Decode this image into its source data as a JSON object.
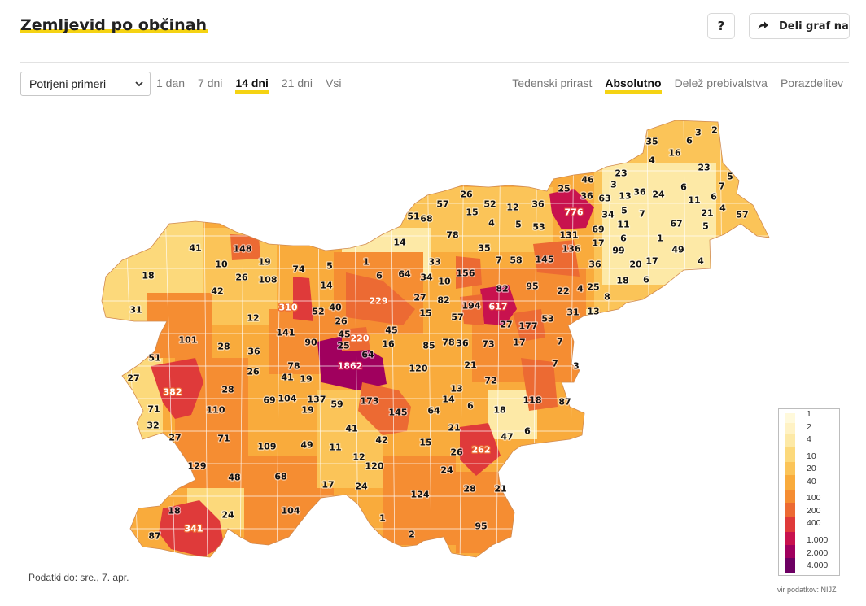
{
  "header": {
    "title": "Zemljevid po občinah",
    "help_label": "?",
    "share_label": "Deli graf na"
  },
  "controls": {
    "measure_select": "Potrjeni primeri",
    "periods": [
      {
        "label": "1 dan",
        "active": false
      },
      {
        "label": "7 dni",
        "active": false
      },
      {
        "label": "14 dni",
        "active": true
      },
      {
        "label": "21 dni",
        "active": false
      },
      {
        "label": "Vsi",
        "active": false
      }
    ],
    "modes": [
      {
        "label": "Tedenski prirast",
        "active": false
      },
      {
        "label": "Absolutno",
        "active": true
      },
      {
        "label": "Delež prebivalstva",
        "active": false
      },
      {
        "label": "Porazdelitev",
        "active": false
      }
    ]
  },
  "map": {
    "values": [
      "35",
      "3",
      "2",
      "6",
      "16",
      "4",
      "23",
      "5",
      "25",
      "46",
      "23",
      "3",
      "36",
      "13",
      "36",
      "24",
      "6",
      "63",
      "11",
      "7",
      "6",
      "4",
      "21",
      "5",
      "57",
      "776",
      "34",
      "69",
      "67",
      "26",
      "57",
      "51",
      "68",
      "52",
      "12",
      "36",
      "15",
      "4",
      "5",
      "53",
      "14",
      "78",
      "131",
      "136",
      "17",
      "5",
      "11",
      "7",
      "6",
      "1",
      "49",
      "99",
      "36",
      "20",
      "17",
      "6",
      "4",
      "18",
      "1",
      "6",
      "64",
      "33",
      "10",
      "156",
      "7",
      "58",
      "145",
      "35",
      "82",
      "95",
      "22",
      "4",
      "25",
      "8",
      "41",
      "148",
      "10",
      "19",
      "74",
      "5",
      "26",
      "108",
      "14",
      "18",
      "42",
      "310",
      "52",
      "40",
      "229",
      "34",
      "27",
      "82",
      "194",
      "617",
      "53",
      "31",
      "13",
      "31",
      "12",
      "141",
      "26",
      "45",
      "15",
      "57",
      "27",
      "177",
      "90",
      "220",
      "45",
      "16",
      "101",
      "28",
      "36",
      "25",
      "85",
      "78",
      "36",
      "73",
      "17",
      "7",
      "7",
      "3",
      "51",
      "26",
      "64",
      "1862",
      "120",
      "21",
      "27",
      "78",
      "41",
      "19",
      "28",
      "13",
      "72",
      "382",
      "69",
      "104",
      "137",
      "59",
      "173",
      "14",
      "6",
      "18",
      "118",
      "87",
      "19",
      "145",
      "64",
      "71",
      "110",
      "21",
      "47",
      "6",
      "32",
      "27",
      "71",
      "41",
      "42",
      "15",
      "26",
      "262",
      "109",
      "49",
      "11",
      "129",
      "12",
      "120",
      "24",
      "48",
      "68",
      "17",
      "24",
      "21",
      "28",
      "104",
      "124",
      "18",
      "24",
      "1",
      "95",
      "87",
      "341",
      "2"
    ],
    "legend": [
      "1",
      "2",
      "4",
      "10",
      "20",
      "40",
      "100",
      "200",
      "400",
      "1.000",
      "2.000",
      "4.000"
    ],
    "legend_colors": [
      "#fff9db",
      "#fff2c4",
      "#fde9a6",
      "#fcd97b",
      "#fbc458",
      "#f9ab3c",
      "#f58d32",
      "#ec6a33",
      "#df3a3a",
      "#c8124e",
      "#a0005e",
      "#6d0063"
    ]
  },
  "footer": {
    "data_date": "Podatki do: sre., 7. apr.",
    "source": "vir podatkov: NIJZ"
  }
}
